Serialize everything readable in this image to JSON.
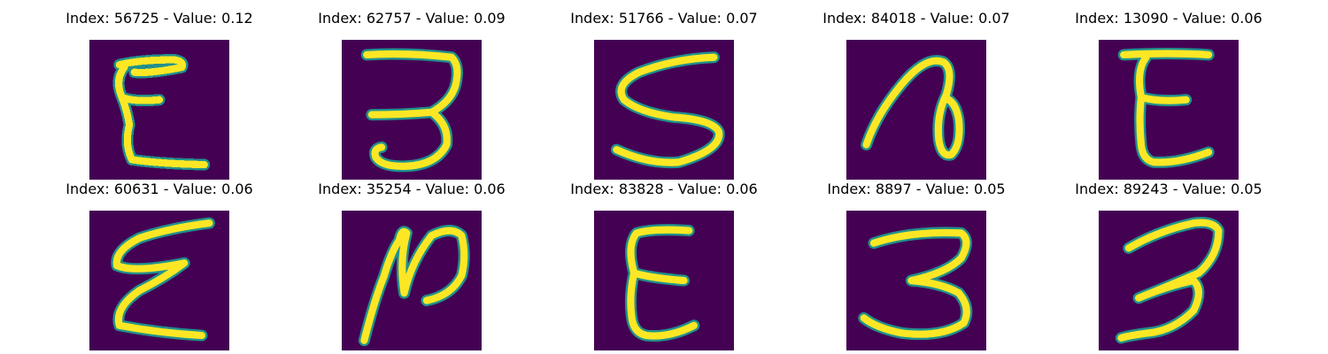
{
  "colors": {
    "background": "#440154",
    "stroke_edge": "#21918c",
    "stroke_core": "#fde725"
  },
  "panels": [
    {
      "title": "Index: 56725 - Value: 0.12",
      "index": 56725,
      "value": 0.12
    },
    {
      "title": "Index: 62757 - Value: 0.09",
      "index": 62757,
      "value": 0.09
    },
    {
      "title": "Index: 51766 - Value: 0.07",
      "index": 51766,
      "value": 0.07
    },
    {
      "title": "Index: 84018 - Value: 0.07",
      "index": 84018,
      "value": 0.07
    },
    {
      "title": "Index: 13090 - Value: 0.06",
      "index": 13090,
      "value": 0.06
    },
    {
      "title": "Index: 60631 - Value: 0.06",
      "index": 60631,
      "value": 0.06
    },
    {
      "title": "Index: 35254 - Value: 0.06",
      "index": 35254,
      "value": 0.06
    },
    {
      "title": "Index: 83828 - Value: 0.06",
      "index": 83828,
      "value": 0.06
    },
    {
      "title": "Index: 8897 - Value: 0.05",
      "index": 8897,
      "value": 0.05
    },
    {
      "title": "Index: 89243 - Value: 0.05",
      "index": 89243,
      "value": 0.05
    }
  ]
}
